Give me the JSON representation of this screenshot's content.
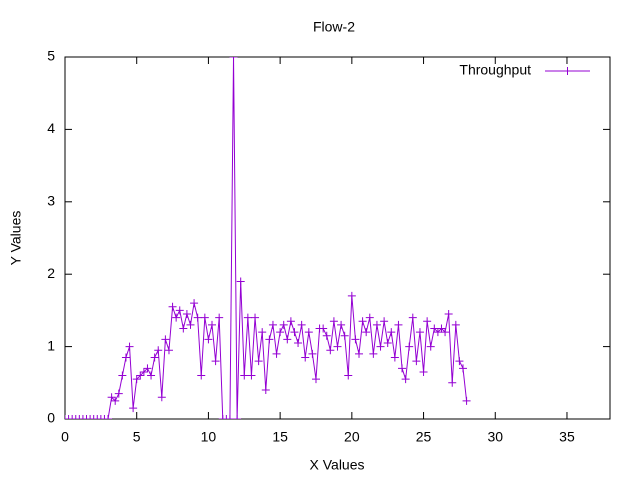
{
  "chart_data": {
    "type": "line",
    "title": "Flow-2",
    "x_label": "X Values",
    "y_label": "Y Values",
    "x": [
      0,
      0.25,
      0.5,
      0.75,
      1,
      1.25,
      1.5,
      1.75,
      2,
      2.25,
      2.5,
      2.75,
      3,
      3.25,
      3.5,
      3.75,
      4,
      4.25,
      4.5,
      4.75,
      5,
      5.25,
      5.5,
      5.75,
      6,
      6.25,
      6.5,
      6.75,
      7,
      7.25,
      7.5,
      7.75,
      8,
      8.25,
      8.5,
      8.75,
      9,
      9.25,
      9.5,
      9.75,
      10,
      10.25,
      10.5,
      10.75,
      11,
      11.25,
      11.5,
      11.75,
      12,
      12.25,
      12.5,
      12.75,
      13,
      13.25,
      13.5,
      13.75,
      14,
      14.25,
      14.5,
      14.75,
      15,
      15.25,
      15.5,
      15.75,
      16,
      16.25,
      16.5,
      16.75,
      17,
      17.25,
      17.5,
      17.75,
      18,
      18.25,
      18.5,
      18.75,
      19,
      19.25,
      19.5,
      19.75,
      20,
      20.25,
      20.5,
      20.75,
      21,
      21.25,
      21.5,
      21.75,
      22,
      22.25,
      22.5,
      22.75,
      23,
      23.25,
      23.5,
      23.75,
      24,
      24.25,
      24.5,
      24.75,
      25,
      25.25,
      25.5,
      25.75,
      26,
      26.25,
      26.5,
      26.75,
      27,
      27.25,
      27.5,
      27.75,
      28
    ],
    "series": [
      {
        "name": "Throughput",
        "color": "#9400d3",
        "values": [
          0,
          0,
          0,
          0,
          0,
          0,
          0,
          0,
          0,
          0,
          0,
          0,
          0,
          0.3,
          0.25,
          0.35,
          0.6,
          0.85,
          1.0,
          0.15,
          0.55,
          0.6,
          0.65,
          0.7,
          0.6,
          0.85,
          0.95,
          0.3,
          1.1,
          0.95,
          1.55,
          1.4,
          1.5,
          1.25,
          1.45,
          1.3,
          1.6,
          1.4,
          0.6,
          1.4,
          1.1,
          1.3,
          0.8,
          1.4,
          0,
          0,
          0,
          5,
          0,
          1.9,
          0.6,
          1.4,
          0.6,
          1.4,
          0.8,
          1.2,
          0.4,
          1.1,
          1.3,
          0.9,
          1.2,
          1.3,
          1.1,
          1.35,
          1.2,
          1.05,
          1.3,
          0.85,
          1.2,
          0.9,
          0.55,
          1.25,
          1.25,
          1.15,
          0.95,
          1.35,
          1.0,
          1.3,
          1.15,
          0.6,
          1.7,
          1.1,
          0.9,
          1.35,
          1.2,
          1.4,
          0.9,
          1.3,
          1.0,
          1.35,
          1.05,
          1.2,
          0.85,
          1.3,
          0.7,
          0.55,
          1.0,
          1.4,
          0.8,
          1.2,
          0.65,
          1.35,
          1.0,
          1.25,
          1.2,
          1.25,
          1.2,
          1.45,
          0.5,
          1.3,
          0.8,
          0.7,
          0.25
        ]
      }
    ],
    "xlim": [
      0,
      38
    ],
    "ylim": [
      0,
      5
    ],
    "xticks": [
      0,
      5,
      10,
      15,
      20,
      25,
      30,
      35
    ],
    "yticks": [
      0,
      1,
      2,
      3,
      4,
      5
    ],
    "legend": "top-right"
  }
}
